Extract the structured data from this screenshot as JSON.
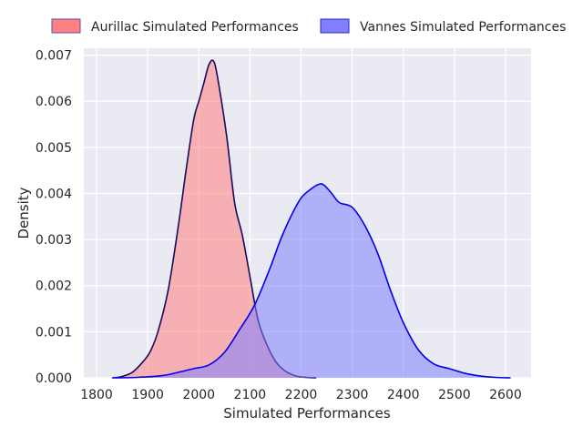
{
  "chart_data": {
    "type": "area",
    "title": "",
    "xlabel": "Simulated Performances",
    "ylabel": "Density",
    "xlim": [
      1775,
      2650
    ],
    "ylim": [
      0,
      0.00715
    ],
    "xticks": [
      1800,
      1900,
      2000,
      2100,
      2200,
      2300,
      2400,
      2500,
      2600
    ],
    "yticks": [
      0.0,
      0.001,
      0.002,
      0.003,
      0.004,
      0.005,
      0.006,
      0.007
    ],
    "xtick_labels": [
      "1800",
      "1900",
      "2000",
      "2100",
      "2200",
      "2300",
      "2400",
      "2500",
      "2600"
    ],
    "ytick_labels": [
      "0.000",
      "0.001",
      "0.002",
      "0.003",
      "0.004",
      "0.005",
      "0.006",
      "0.007"
    ],
    "grid": true,
    "legend_position": "top",
    "series": [
      {
        "name": "Aurillac Simulated Performances",
        "fill_color": "#ff8080",
        "line_color": "#1a0a5e",
        "x": [
          1835,
          1850,
          1870,
          1890,
          1905,
          1920,
          1940,
          1960,
          1975,
          1990,
          2000,
          2010,
          2020,
          2030,
          2040,
          2055,
          2070,
          2085,
          2100,
          2115,
          2130,
          2150,
          2170,
          2190,
          2210,
          2230
        ],
        "y": [
          0.0,
          3e-05,
          0.00012,
          0.00034,
          0.00057,
          0.001,
          0.0019,
          0.0033,
          0.0045,
          0.0056,
          0.006,
          0.0064,
          0.0068,
          0.00685,
          0.0063,
          0.0052,
          0.0038,
          0.0031,
          0.0022,
          0.0013,
          0.0008,
          0.00036,
          0.00014,
          4e-05,
          1e-05,
          0.0
        ]
      },
      {
        "name": "Vannes Simulated Performances",
        "fill_color": "#8080ff",
        "line_color": "#0000ee",
        "x": [
          1830,
          1880,
          1930,
          1960,
          1990,
          2020,
          2050,
          2080,
          2110,
          2140,
          2160,
          2180,
          2200,
          2220,
          2235,
          2245,
          2260,
          2275,
          2300,
          2325,
          2350,
          2375,
          2400,
          2430,
          2460,
          2490,
          2520,
          2550,
          2580,
          2610
        ],
        "y": [
          0.0,
          1e-05,
          5e-05,
          0.00012,
          0.0002,
          0.00028,
          0.00055,
          0.00105,
          0.0016,
          0.0024,
          0.003,
          0.0035,
          0.0039,
          0.0041,
          0.0042,
          0.00418,
          0.004,
          0.0038,
          0.0037,
          0.0033,
          0.0027,
          0.0019,
          0.0012,
          0.0006,
          0.0003,
          0.0002,
          0.0001,
          4e-05,
          1e-05,
          0.0
        ]
      }
    ]
  }
}
